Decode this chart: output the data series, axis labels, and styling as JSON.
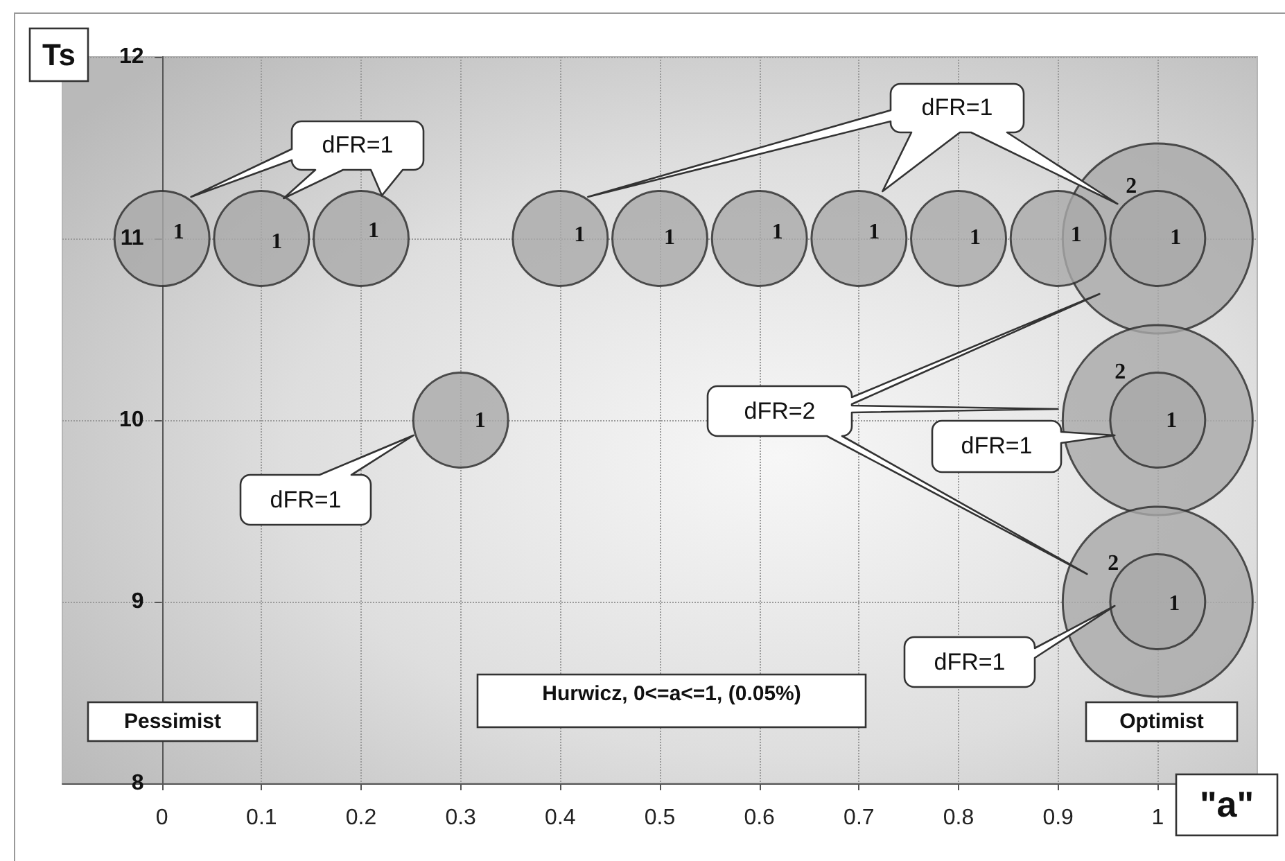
{
  "chart_data": {
    "type": "bubble",
    "xlabel": "\"a\"",
    "ylabel": "Ts",
    "xlim": [
      -0.1,
      1.1
    ],
    "xticks": [
      0,
      0.1,
      0.2,
      0.3,
      0.4,
      0.5,
      0.6,
      0.7,
      0.8,
      0.9,
      1
    ],
    "ylim": [
      8,
      12
    ],
    "yticks": [
      8,
      9,
      10,
      11,
      12
    ],
    "grid": true,
    "series": [
      {
        "color": "#a9a9a9",
        "x": [
          1,
          1,
          1
        ],
        "values": [
          11,
          10,
          9
        ],
        "sizes": [
          1,
          1,
          1
        ]
      },
      {
        "color": "#a9a9a9",
        "x": [
          0,
          0.1,
          0.2,
          0.3,
          0.4,
          0.5,
          0.6,
          0.7,
          0.8,
          0.9,
          1,
          1,
          1
        ],
        "values": [
          11,
          11,
          11,
          10,
          11,
          11,
          11,
          11,
          11,
          11,
          11,
          10,
          9
        ],
        "sizes": [
          0.25,
          0.25,
          0.25,
          0.25,
          0.25,
          0.25,
          0.25,
          0.25,
          0.25,
          0.25,
          0.25,
          0.25,
          0.25
        ]
      }
    ],
    "annotations": [
      "dFR=1",
      "dFR=1",
      "dFR=2",
      "dFR=1",
      "dFR=1",
      "dFR=1",
      "Hurwicz, 0<=a<=1, (0.05%)",
      "Pessimist",
      "Optimist",
      {
        "text": "1",
        "x": 0,
        "y": 11
      },
      {
        "text": "1",
        "x": 0.1,
        "y": 11
      },
      {
        "text": "1",
        "x": 0.2,
        "y": 11
      },
      {
        "text": "1",
        "x": 0.4,
        "y": 11
      },
      {
        "text": "1",
        "x": 0.5,
        "y": 11
      },
      {
        "text": "1",
        "x": 0.6,
        "y": 11
      },
      {
        "text": "1",
        "x": 0.7,
        "y": 11
      },
      {
        "text": "1",
        "x": 0.8,
        "y": 11
      },
      {
        "text": "1",
        "x": 0.9,
        "y": 11
      },
      {
        "text": "2",
        "x": 1,
        "y": 11
      },
      {
        "text": "1",
        "x": 1,
        "y": 11
      },
      {
        "text": "1",
        "x": 0.3,
        "y": 10
      },
      {
        "text": "2",
        "x": 1,
        "y": 10
      },
      {
        "text": "1",
        "x": 1,
        "y": 10
      },
      {
        "text": "2",
        "x": 1,
        "y": 9
      },
      {
        "text": "1",
        "x": 1,
        "y": 9
      }
    ]
  }
}
